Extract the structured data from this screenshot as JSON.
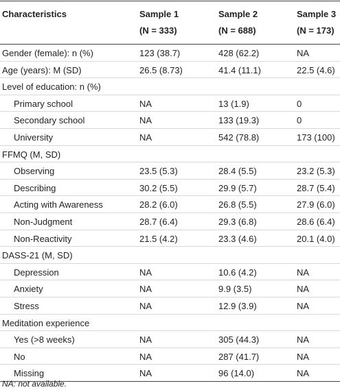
{
  "table": {
    "header": [
      "Characteristics",
      "Sample 1",
      "Sample 2",
      "Sample 3"
    ],
    "subheader": [
      "(N = 333)",
      "(N = 688)",
      "(N = 173)"
    ],
    "rows": [
      {
        "label": "Gender (female): n (%)",
        "cells": [
          "123 (38.7)",
          "428 (62.2)",
          "NA"
        ]
      },
      {
        "label": "Age (years): M (SD)",
        "cells": [
          "26.5 (8.73)",
          "41.4 (11.1)",
          "22.5 (4.6)"
        ]
      },
      {
        "label": "Level of education: n (%)"
      },
      {
        "label": "Primary school",
        "sub": true,
        "cells": [
          "NA",
          "13 (1.9)",
          "0"
        ]
      },
      {
        "label": "Secondary school",
        "sub": true,
        "cells": [
          "NA",
          "133 (19.3)",
          "0"
        ]
      },
      {
        "label": "University",
        "sub": true,
        "cells": [
          "NA",
          "542 (78.8)",
          "173 (100)"
        ]
      },
      {
        "label": "FFMQ (M, SD)"
      },
      {
        "label": "Observing",
        "sub": true,
        "cells": [
          "23.5 (5.3)",
          "28.4 (5.5)",
          "23.2 (5.3)"
        ]
      },
      {
        "label": "Describing",
        "sub": true,
        "cells": [
          "30.2 (5.5)",
          "29.9 (5.7)",
          "28.7 (5.4)"
        ]
      },
      {
        "label": "Acting with Awareness",
        "sub": true,
        "cells": [
          "28.2 (6.0)",
          "26.8 (5.5)",
          "27.9 (6.0)"
        ]
      },
      {
        "label": "Non-Judgment",
        "sub": true,
        "cells": [
          "28.7 (6.4)",
          "29.3 (6.8)",
          "28.6 (6.4)"
        ]
      },
      {
        "label": "Non-Reactivity",
        "sub": true,
        "cells": [
          "21.5 (4.2)",
          "23.3 (4.6)",
          "20.1 (4.0)"
        ]
      },
      {
        "label": "DASS-21 (M, SD)"
      },
      {
        "label": "Depression",
        "sub": true,
        "cells": [
          "NA",
          "10.6 (4.2)",
          "NA"
        ]
      },
      {
        "label": "Anxiety",
        "sub": true,
        "cells": [
          "NA",
          "9.9 (3.5)",
          "NA"
        ]
      },
      {
        "label": "Stress",
        "sub": true,
        "cells": [
          "NA",
          "12.9 (3.9)",
          "NA"
        ]
      },
      {
        "label": "Meditation experience"
      },
      {
        "label": "Yes (>8 weeks)",
        "sub": true,
        "cells": [
          "NA",
          "305 (44.3)",
          "NA"
        ]
      },
      {
        "label": "No",
        "sub": true,
        "cells": [
          "NA",
          "287 (41.7)",
          "NA"
        ]
      },
      {
        "label": "Missing",
        "sub": true,
        "cells": [
          "NA",
          "96 (14.0)",
          "NA"
        ]
      }
    ],
    "footnote": "NA: not available."
  }
}
